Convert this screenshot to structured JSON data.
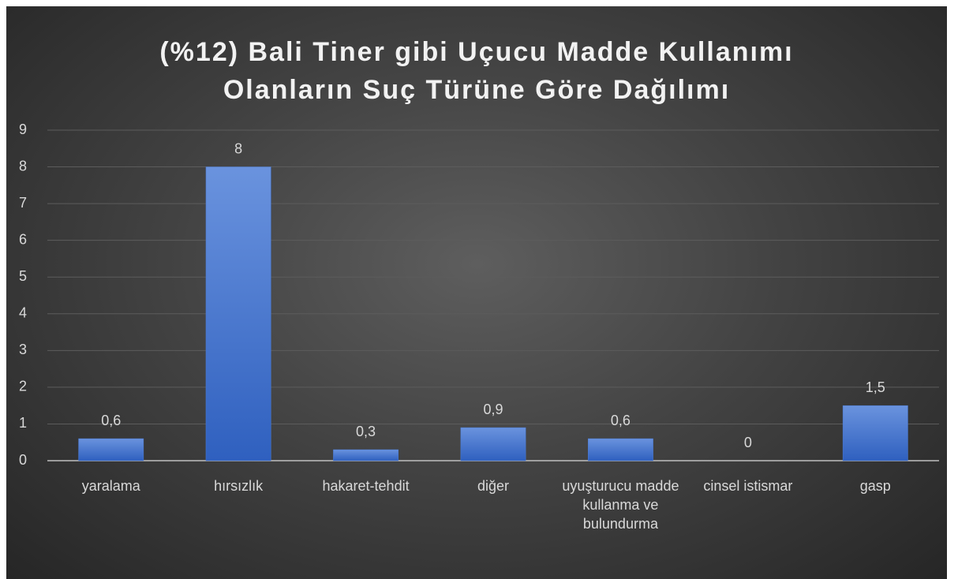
{
  "chart_data": {
    "type": "bar",
    "title": "(%12) Bali Tiner gibi Uçucu Madde Kullanımı\nOlanların Suç Türüne Göre Dağılımı",
    "categories": [
      "yaralama",
      "hırsızlık",
      "hakaret-tehdit",
      "diğer",
      "uyuşturucu madde kullanma ve bulundurma",
      "cinsel istismar",
      "gasp"
    ],
    "values": [
      0.6,
      8,
      0.3,
      0.9,
      0.6,
      0,
      1.5
    ],
    "value_labels": [
      "0,6",
      "8",
      "0,3",
      "0,9",
      "0,6",
      "0",
      "1,5"
    ],
    "color": "#4a7bd6",
    "ylim": [
      0,
      9
    ],
    "yticks": [
      0,
      1,
      2,
      3,
      4,
      5,
      6,
      7,
      8,
      9
    ],
    "grid": true
  }
}
